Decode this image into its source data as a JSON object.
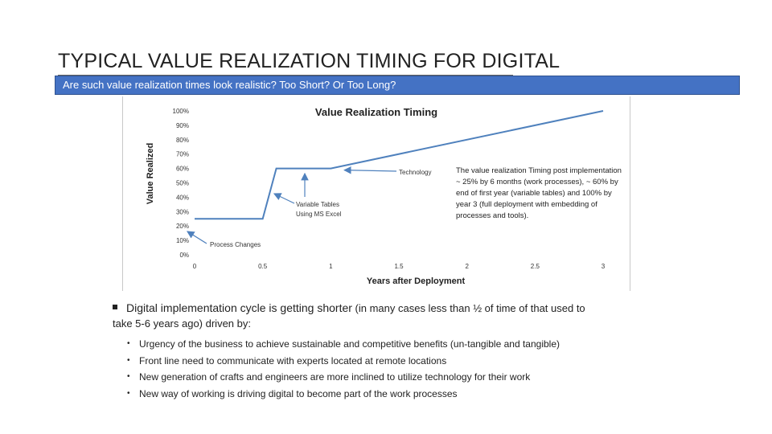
{
  "slide": {
    "title": "TYPICAL VALUE REALIZATION TIMING FOR DIGITAL",
    "banner": "Are such value realization times look realistic? Too Short? Or Too Long?",
    "accent_color": "#4472c4"
  },
  "chart_data": {
    "type": "line",
    "title": "Value Realization Timing",
    "xlabel": "Years after Deployment",
    "ylabel": "Value Realized",
    "xlim": [
      0,
      3
    ],
    "ylim": [
      0,
      1
    ],
    "x_ticks": [
      "0",
      "0.5",
      "1",
      "1.5",
      "2",
      "2.5",
      "3"
    ],
    "y_ticks": [
      "0%",
      "10%",
      "20%",
      "30%",
      "40%",
      "50%",
      "60%",
      "70%",
      "80%",
      "90%",
      "100%"
    ],
    "grid": false,
    "series": [
      {
        "color": "#4f81bd",
        "x": [
          0,
          0.5,
          0.6,
          1.0,
          3.0
        ],
        "y": [
          0.25,
          0.25,
          0.6,
          0.6,
          1.0
        ]
      }
    ],
    "annotations": [
      {
        "text": "Technology",
        "points_to": [
          1.1,
          0.6
        ]
      },
      {
        "text": "Variable Tables\nUsing MS Excel",
        "points_to": [
          0.55,
          0.57
        ]
      },
      {
        "text": "Process Changes",
        "points_to": [
          0.3,
          0.25
        ]
      }
    ]
  },
  "side_note": "The value realization Timing post implementation ~ 25% by 6 months (work processes), ~ 60% by end of first year (variable tables) and 100% by year 3 (full deployment with embedding of processes and tools).",
  "bullets": {
    "main_lead": "Digital implementation cycle is getting shorter",
    "main_tail_1": " (in many cases less than ½ of time of that used to",
    "main_tail_2": "take 5-6 years ago) driven by:",
    "sub_marker": "•",
    "sub": [
      "Urgency of the business to achieve sustainable and competitive benefits (un-tangible and tangible)",
      "Front line need to communicate with experts located at remote locations",
      "New generation of crafts and engineers are more inclined to utilize technology for their work",
      "New way of working is driving digital to become part of the work processes"
    ]
  }
}
